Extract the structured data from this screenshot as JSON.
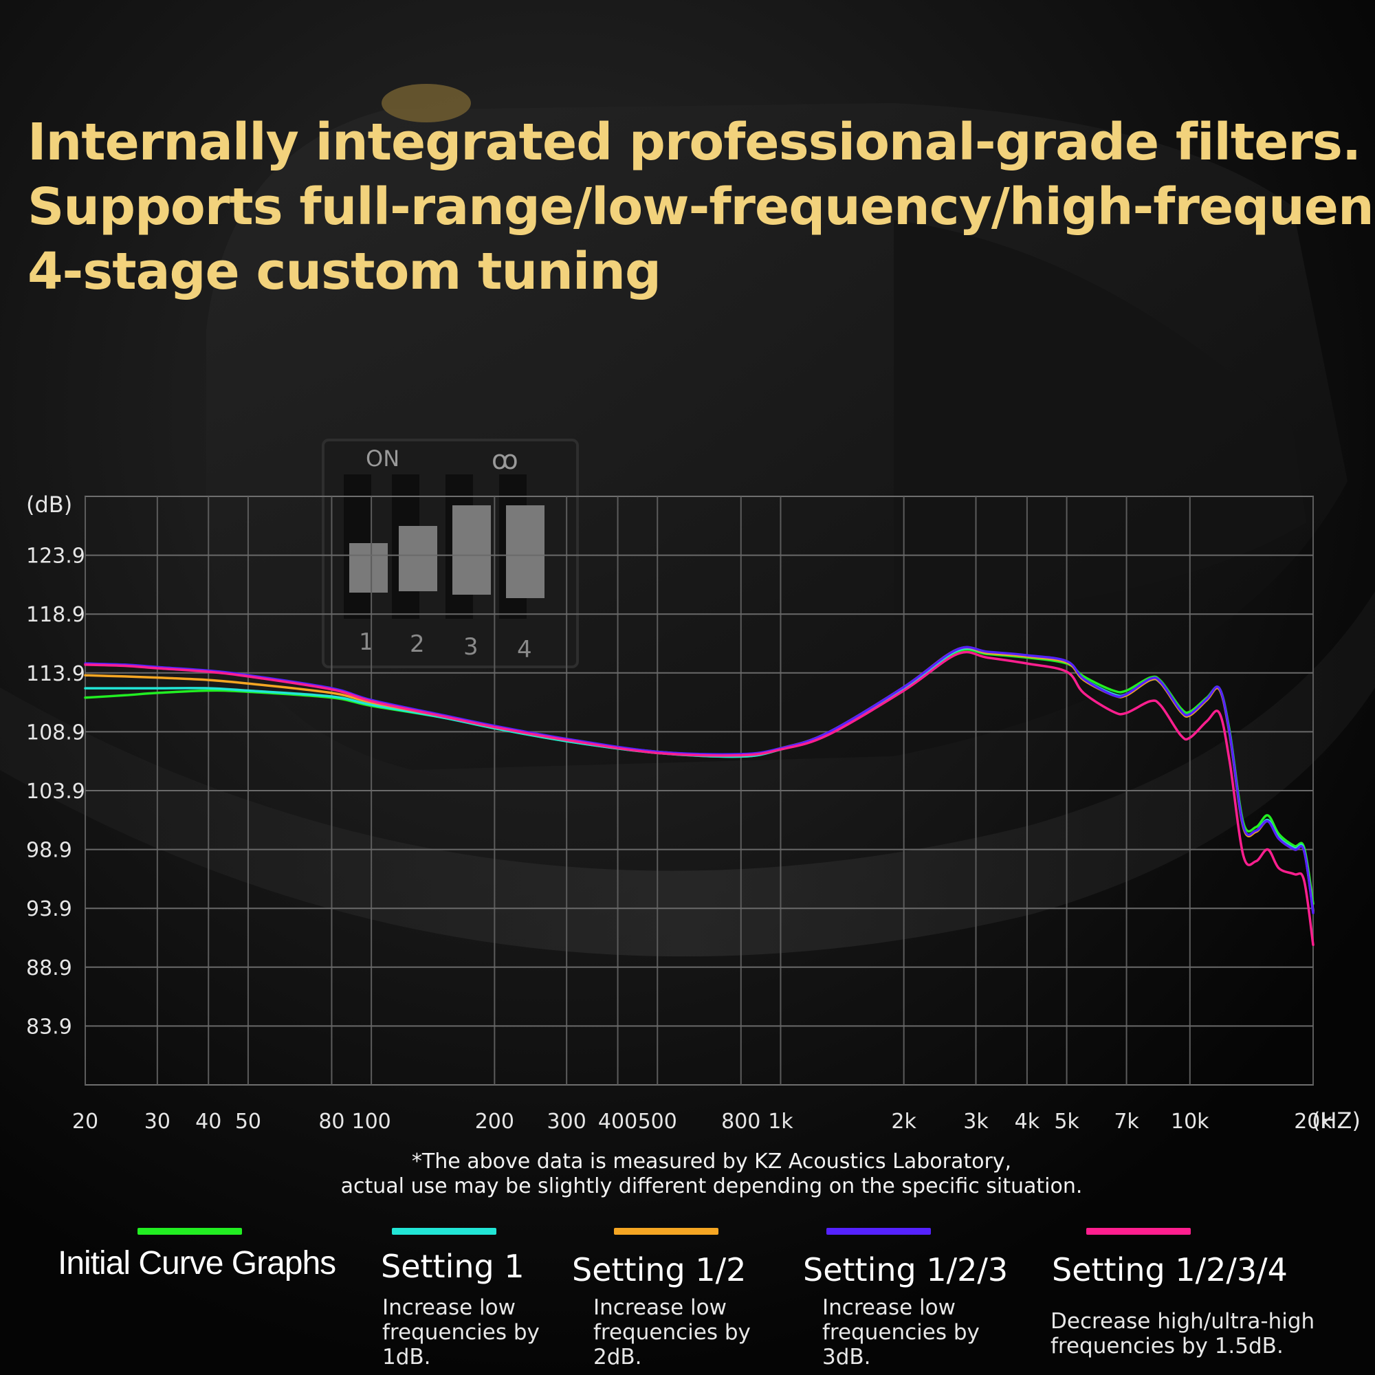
{
  "headline": {
    "line1": "Internally integrated professional-grade filters.",
    "line2": "Supports full-range/low-frequency/high-frequency",
    "line3": "4-stage custom tuning"
  },
  "device": {
    "on_label": "ON",
    "brand_mark": "ꝏ",
    "switch_numbers": [
      "1",
      "2",
      "3",
      "4"
    ]
  },
  "footnote": {
    "line1": "*The above data is measured by KZ Acoustics Laboratory,",
    "line2": "actual use may be slightly different depending on the specific situation."
  },
  "legend": [
    {
      "label": "Initial Curve Graphs",
      "color": "#22ee22",
      "desc": ""
    },
    {
      "label": "Setting 1",
      "color": "#22e6d6",
      "desc": "Increase low frequencies by 1dB."
    },
    {
      "label": "Setting 1/2",
      "color": "#f5a623",
      "desc": "Increase low frequencies by 2dB."
    },
    {
      "label": "Setting 1/2/3",
      "color": "#5522ff",
      "desc": "Increase low frequencies by 3dB."
    },
    {
      "label": "Setting 1/2/3/4",
      "color": "#ff1f8f",
      "desc": "Decrease high/ultra-high frequencies by 1.5dB."
    }
  ],
  "chart_data": {
    "type": "line",
    "y_unit_label": "(dB)",
    "x_unit_label": "(HZ)",
    "x_scale": "log",
    "xlim": [
      20,
      20000
    ],
    "ylim": [
      78.9,
      128.9
    ],
    "x_ticks": [
      {
        "v": 20,
        "label": "20"
      },
      {
        "v": 30,
        "label": "30"
      },
      {
        "v": 40,
        "label": "40"
      },
      {
        "v": 50,
        "label": "50"
      },
      {
        "v": 80,
        "label": "80"
      },
      {
        "v": 100,
        "label": "100"
      },
      {
        "v": 200,
        "label": "200"
      },
      {
        "v": 300,
        "label": "300"
      },
      {
        "v": 400,
        "label": "400"
      },
      {
        "v": 500,
        "label": "500"
      },
      {
        "v": 800,
        "label": "800"
      },
      {
        "v": 1000,
        "label": "1k"
      },
      {
        "v": 2000,
        "label": "2k"
      },
      {
        "v": 3000,
        "label": "3k"
      },
      {
        "v": 4000,
        "label": "4k"
      },
      {
        "v": 5000,
        "label": "5k"
      },
      {
        "v": 7000,
        "label": "7k"
      },
      {
        "v": 10000,
        "label": "10k"
      },
      {
        "v": 20000,
        "label": "20k"
      }
    ],
    "y_ticks": [
      123.9,
      118.9,
      113.9,
      108.9,
      103.9,
      98.9,
      93.9,
      88.9,
      83.9
    ],
    "grid": true,
    "legend_position": "bottom",
    "series": [
      {
        "name": "Initial Curve Graphs",
        "color": "#22ee22",
        "points": [
          [
            20,
            111.8
          ],
          [
            25,
            112.0
          ],
          [
            30,
            112.2
          ],
          [
            40,
            112.4
          ],
          [
            50,
            112.3
          ],
          [
            80,
            111.8
          ],
          [
            100,
            111.1
          ],
          [
            150,
            110.1
          ],
          [
            200,
            109.2
          ],
          [
            300,
            108.1
          ],
          [
            500,
            107.1
          ],
          [
            800,
            106.8
          ],
          [
            1000,
            107.4
          ],
          [
            1300,
            108.7
          ],
          [
            2000,
            112.6
          ],
          [
            2700,
            115.7
          ],
          [
            3200,
            115.5
          ],
          [
            4000,
            115.2
          ],
          [
            5000,
            114.7
          ],
          [
            5500,
            113.6
          ],
          [
            6500,
            112.4
          ],
          [
            7000,
            112.4
          ],
          [
            8000,
            113.5
          ],
          [
            8500,
            113.2
          ],
          [
            9500,
            110.9
          ],
          [
            10000,
            110.6
          ],
          [
            11000,
            111.8
          ],
          [
            11800,
            112.6
          ],
          [
            12500,
            109.0
          ],
          [
            13500,
            101.2
          ],
          [
            14500,
            100.8
          ],
          [
            15500,
            101.8
          ],
          [
            16500,
            100.2
          ],
          [
            18000,
            99.2
          ],
          [
            19000,
            99.1
          ],
          [
            20000,
            94.3
          ]
        ]
      },
      {
        "name": "Setting 1",
        "color": "#22e6d6",
        "points": [
          [
            20,
            112.6
          ],
          [
            25,
            112.6
          ],
          [
            30,
            112.6
          ],
          [
            40,
            112.6
          ],
          [
            50,
            112.4
          ],
          [
            80,
            111.9
          ],
          [
            100,
            111.2
          ],
          [
            150,
            110.1
          ],
          [
            200,
            109.2
          ],
          [
            300,
            108.1
          ],
          [
            500,
            107.1
          ],
          [
            800,
            106.8
          ],
          [
            1000,
            107.4
          ],
          [
            1300,
            108.7
          ],
          [
            2000,
            112.6
          ],
          [
            2700,
            115.8
          ],
          [
            3200,
            115.6
          ],
          [
            4000,
            115.3
          ],
          [
            5000,
            114.8
          ],
          [
            5500,
            113.4
          ],
          [
            6500,
            112.1
          ],
          [
            7000,
            112.1
          ],
          [
            8000,
            113.3
          ],
          [
            8500,
            113.0
          ],
          [
            9500,
            110.7
          ],
          [
            10000,
            110.4
          ],
          [
            11000,
            111.7
          ],
          [
            11800,
            112.5
          ],
          [
            12500,
            108.8
          ],
          [
            13500,
            100.9
          ],
          [
            14500,
            100.5
          ],
          [
            15500,
            101.4
          ],
          [
            16500,
            99.9
          ],
          [
            18000,
            99.0
          ],
          [
            19000,
            98.9
          ],
          [
            20000,
            93.7
          ]
        ]
      },
      {
        "name": "Setting 1/2",
        "color": "#f5a623",
        "points": [
          [
            20,
            113.7
          ],
          [
            25,
            113.6
          ],
          [
            30,
            113.5
          ],
          [
            40,
            113.3
          ],
          [
            50,
            113.0
          ],
          [
            80,
            112.2
          ],
          [
            100,
            111.4
          ],
          [
            150,
            110.2
          ],
          [
            200,
            109.3
          ],
          [
            300,
            108.2
          ],
          [
            500,
            107.2
          ],
          [
            800,
            106.9
          ],
          [
            1000,
            107.5
          ],
          [
            1300,
            108.8
          ],
          [
            2000,
            112.7
          ],
          [
            2700,
            115.9
          ],
          [
            3200,
            115.6
          ],
          [
            4000,
            115.3
          ],
          [
            5000,
            114.8
          ],
          [
            5500,
            113.3
          ],
          [
            6500,
            112.0
          ],
          [
            7000,
            112.0
          ],
          [
            8000,
            113.3
          ],
          [
            8500,
            113.0
          ],
          [
            9500,
            110.6
          ],
          [
            10000,
            110.3
          ],
          [
            11000,
            111.6
          ],
          [
            11800,
            112.5
          ],
          [
            12500,
            108.7
          ],
          [
            13500,
            100.8
          ],
          [
            14500,
            100.4
          ],
          [
            15500,
            101.3
          ],
          [
            16500,
            99.8
          ],
          [
            18000,
            98.9
          ],
          [
            19000,
            98.8
          ],
          [
            20000,
            93.6
          ]
        ]
      },
      {
        "name": "Setting 1/2/3",
        "color": "#5522ff",
        "points": [
          [
            20,
            114.7
          ],
          [
            25,
            114.6
          ],
          [
            30,
            114.4
          ],
          [
            40,
            114.1
          ],
          [
            50,
            113.7
          ],
          [
            80,
            112.6
          ],
          [
            100,
            111.6
          ],
          [
            150,
            110.3
          ],
          [
            200,
            109.4
          ],
          [
            300,
            108.3
          ],
          [
            500,
            107.2
          ],
          [
            800,
            107.0
          ],
          [
            1000,
            107.5
          ],
          [
            1300,
            108.8
          ],
          [
            2000,
            112.7
          ],
          [
            2700,
            115.9
          ],
          [
            3200,
            115.7
          ],
          [
            4000,
            115.4
          ],
          [
            5000,
            114.9
          ],
          [
            5500,
            113.4
          ],
          [
            6500,
            112.0
          ],
          [
            7000,
            112.1
          ],
          [
            8000,
            113.4
          ],
          [
            8500,
            113.1
          ],
          [
            9500,
            110.7
          ],
          [
            10000,
            110.4
          ],
          [
            11000,
            111.7
          ],
          [
            11800,
            112.6
          ],
          [
            12500,
            108.8
          ],
          [
            13500,
            100.9
          ],
          [
            14500,
            100.5
          ],
          [
            15500,
            101.3
          ],
          [
            16500,
            99.8
          ],
          [
            18000,
            98.9
          ],
          [
            19000,
            98.8
          ],
          [
            20000,
            93.5
          ]
        ]
      },
      {
        "name": "Setting 1/2/3/4",
        "color": "#ff1f8f",
        "points": [
          [
            20,
            114.6
          ],
          [
            25,
            114.5
          ],
          [
            30,
            114.3
          ],
          [
            40,
            114.0
          ],
          [
            50,
            113.6
          ],
          [
            80,
            112.5
          ],
          [
            100,
            111.5
          ],
          [
            150,
            110.2
          ],
          [
            200,
            109.3
          ],
          [
            300,
            108.2
          ],
          [
            500,
            107.1
          ],
          [
            800,
            106.9
          ],
          [
            1000,
            107.4
          ],
          [
            1300,
            108.6
          ],
          [
            2000,
            112.4
          ],
          [
            2700,
            115.5
          ],
          [
            3200,
            115.2
          ],
          [
            4000,
            114.7
          ],
          [
            5000,
            114.0
          ],
          [
            5500,
            112.2
          ],
          [
            6500,
            110.6
          ],
          [
            7000,
            110.5
          ],
          [
            8000,
            111.5
          ],
          [
            8500,
            111.1
          ],
          [
            9500,
            108.6
          ],
          [
            10000,
            108.4
          ],
          [
            11000,
            109.8
          ],
          [
            11800,
            110.5
          ],
          [
            12500,
            106.4
          ],
          [
            13500,
            98.4
          ],
          [
            14500,
            97.9
          ],
          [
            15500,
            98.9
          ],
          [
            16500,
            97.3
          ],
          [
            18000,
            96.8
          ],
          [
            19000,
            96.3
          ],
          [
            20000,
            90.8
          ]
        ]
      }
    ]
  }
}
